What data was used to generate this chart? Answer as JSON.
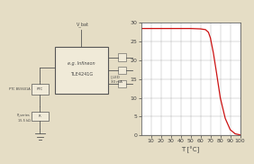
{
  "bg_color": "#e5ddc5",
  "graph_bg": "#ffffff",
  "grid_color": "#999999",
  "curve_color": "#cc1111",
  "curve_x": [
    0,
    10,
    20,
    30,
    40,
    50,
    60,
    65,
    68,
    70,
    73,
    76,
    80,
    85,
    90,
    95,
    100
  ],
  "curve_y": [
    28.5,
    28.5,
    28.5,
    28.5,
    28.5,
    28.5,
    28.4,
    28.2,
    27.5,
    26.0,
    22.0,
    17.0,
    10.0,
    4.5,
    1.5,
    0.4,
    0.1
  ],
  "xlim": [
    0,
    100
  ],
  "ylim": [
    0,
    30
  ],
  "xticks": [
    10,
    20,
    30,
    40,
    50,
    60,
    70,
    80,
    90,
    100
  ],
  "yticks": [
    0,
    5,
    10,
    15,
    20,
    25,
    30
  ],
  "xlabel": "T [°C]",
  "box_label1": "e.g. Infineon",
  "box_label2": "TLE4241G",
  "ptc_label": "PTC B59601A",
  "r_label": "R_series",
  "r_value": "15.5 kΩ",
  "i_led_label": "I_LED",
  "i_value": "30 mA",
  "v_label": "V_bat",
  "tick_fontsize": 4.5,
  "label_fontsize": 5.0,
  "line_color": "#555555",
  "text_color": "#444444",
  "component_face": "#f0ead8"
}
